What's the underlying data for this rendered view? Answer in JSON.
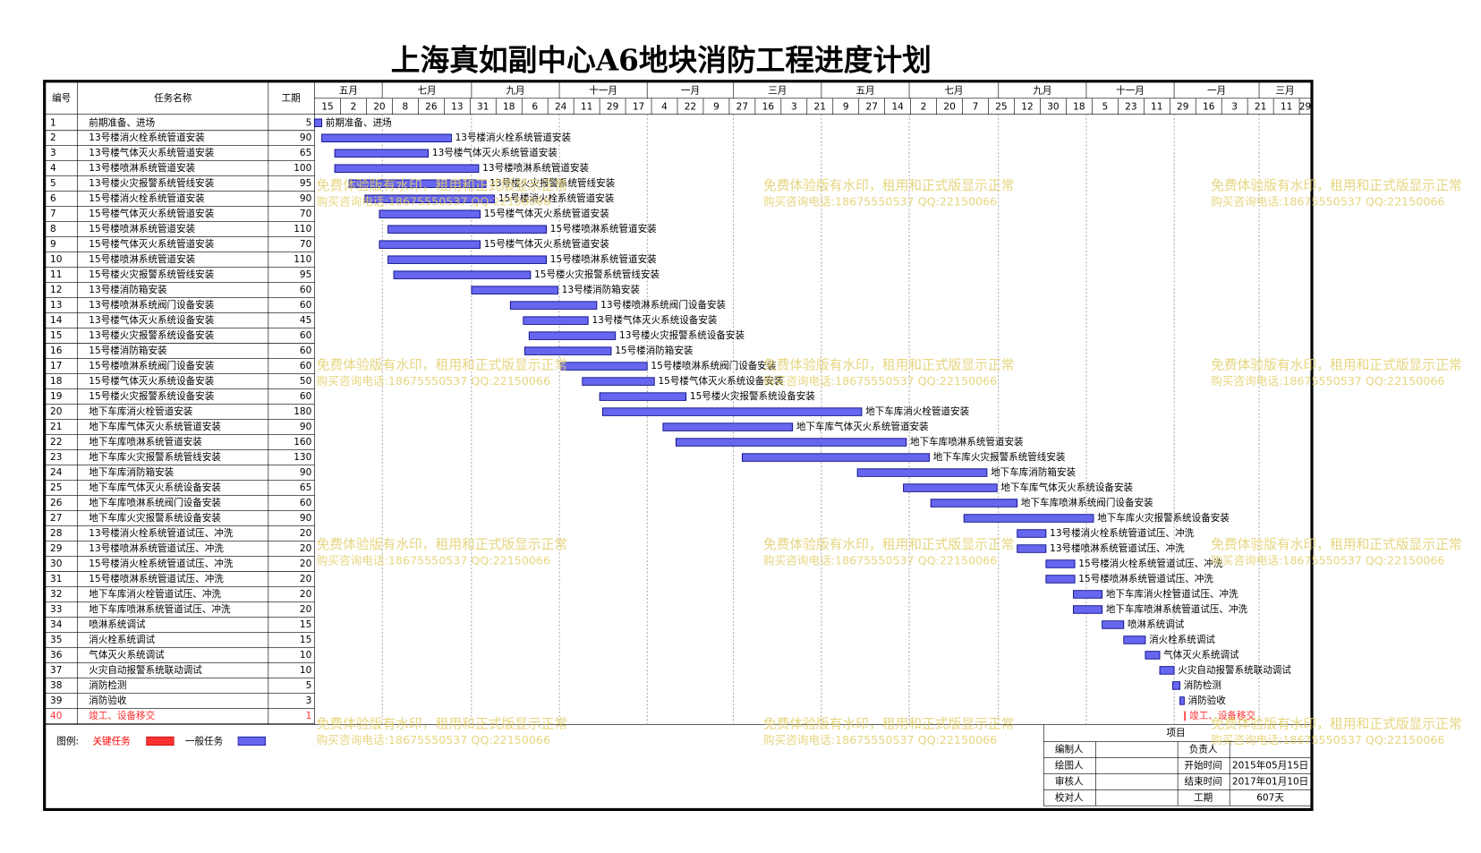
{
  "title": "上海真如副中心A6地块消防工程进度计划",
  "header": {
    "id": "编号",
    "name": "任务名称",
    "duration": "工期"
  },
  "timeline": {
    "xlim": [
      0,
      692
    ],
    "months": [
      {
        "value": 0,
        "label": "五月"
      },
      {
        "value": 47,
        "label": "七月"
      },
      {
        "value": 109,
        "label": "九月"
      },
      {
        "value": 170,
        "label": "十一月"
      },
      {
        "value": 231,
        "label": "一月"
      },
      {
        "value": 291,
        "label": "三月"
      },
      {
        "value": 352,
        "label": "五月"
      },
      {
        "value": 413,
        "label": "七月"
      },
      {
        "value": 475,
        "label": "九月"
      },
      {
        "value": 536,
        "label": "十一月"
      },
      {
        "value": 597,
        "label": "一月"
      },
      {
        "value": 656,
        "label": "三月"
      }
    ],
    "days": [
      {
        "value": 0,
        "label": "15"
      },
      {
        "value": 18,
        "label": "2"
      },
      {
        "value": 36,
        "label": "20"
      },
      {
        "value": 54,
        "label": "8"
      },
      {
        "value": 72,
        "label": "26"
      },
      {
        "value": 90,
        "label": "13"
      },
      {
        "value": 108,
        "label": "31"
      },
      {
        "value": 126,
        "label": "18"
      },
      {
        "value": 144,
        "label": "6"
      },
      {
        "value": 162,
        "label": "24"
      },
      {
        "value": 180,
        "label": "11"
      },
      {
        "value": 198,
        "label": "29"
      },
      {
        "value": 216,
        "label": "17"
      },
      {
        "value": 234,
        "label": "4"
      },
      {
        "value": 252,
        "label": "22"
      },
      {
        "value": 270,
        "label": "9"
      },
      {
        "value": 288,
        "label": "27"
      },
      {
        "value": 306,
        "label": "16"
      },
      {
        "value": 324,
        "label": "3"
      },
      {
        "value": 342,
        "label": "21"
      },
      {
        "value": 360,
        "label": "9"
      },
      {
        "value": 378,
        "label": "27"
      },
      {
        "value": 396,
        "label": "14"
      },
      {
        "value": 414,
        "label": "2"
      },
      {
        "value": 432,
        "label": "20"
      },
      {
        "value": 450,
        "label": "7"
      },
      {
        "value": 468,
        "label": "25"
      },
      {
        "value": 486,
        "label": "12"
      },
      {
        "value": 504,
        "label": "30"
      },
      {
        "value": 522,
        "label": "18"
      },
      {
        "value": 540,
        "label": "5"
      },
      {
        "value": 558,
        "label": "23"
      },
      {
        "value": 576,
        "label": "11"
      },
      {
        "value": 594,
        "label": "29"
      },
      {
        "value": 612,
        "label": "16"
      },
      {
        "value": 630,
        "label": "3"
      },
      {
        "value": 648,
        "label": "21"
      },
      {
        "value": 666,
        "label": "11"
      },
      {
        "value": 684,
        "label": "29"
      }
    ]
  },
  "colors": {
    "normal": "#6666ee",
    "critical": "#ff3030"
  },
  "tasks": [
    {
      "id": 1,
      "name": "前期准备、进场",
      "duration": 5,
      "start": 0
    },
    {
      "id": 2,
      "name": "13号楼消火栓系统管道安装",
      "duration": 90,
      "start": 5
    },
    {
      "id": 3,
      "name": "13号楼气体灭火系统管道安装",
      "duration": 65,
      "start": 14
    },
    {
      "id": 4,
      "name": "13号楼喷淋系统管道安装",
      "duration": 100,
      "start": 14
    },
    {
      "id": 5,
      "name": "13号楼火灾报警系统管线安装",
      "duration": 95,
      "start": 24
    },
    {
      "id": 6,
      "name": "15号楼消火栓系统管道安装",
      "duration": 90,
      "start": 35
    },
    {
      "id": 7,
      "name": "15号楼气体灭火系统管道安装",
      "duration": 70,
      "start": 45
    },
    {
      "id": 8,
      "name": "15号楼喷淋系统管道安装",
      "duration": 110,
      "start": 51
    },
    {
      "id": 9,
      "name": "15号楼气体灭火系统管道安装",
      "duration": 70,
      "start": 45
    },
    {
      "id": 10,
      "name": "15号楼喷淋系统管道安装",
      "duration": 110,
      "start": 51
    },
    {
      "id": 11,
      "name": "15号楼火灾报警系统管线安装",
      "duration": 95,
      "start": 55
    },
    {
      "id": 12,
      "name": "13号楼消防箱安装",
      "duration": 60,
      "start": 109
    },
    {
      "id": 13,
      "name": "13号楼喷淋系统阀门设备安装",
      "duration": 60,
      "start": 136
    },
    {
      "id": 14,
      "name": "13号楼气体灭火系统设备安装",
      "duration": 45,
      "start": 145
    },
    {
      "id": 15,
      "name": "13号楼火灾报警系统设备安装",
      "duration": 60,
      "start": 149
    },
    {
      "id": 16,
      "name": "15号楼消防箱安装",
      "duration": 60,
      "start": 146
    },
    {
      "id": 17,
      "name": "15号楼喷淋系统阀门设备安装",
      "duration": 60,
      "start": 171
    },
    {
      "id": 18,
      "name": "15号楼气体灭火系统设备安装",
      "duration": 50,
      "start": 186
    },
    {
      "id": 19,
      "name": "15号楼火灾报警系统设备安装",
      "duration": 60,
      "start": 198
    },
    {
      "id": 20,
      "name": "地下车库消火栓管道安装",
      "duration": 180,
      "start": 200
    },
    {
      "id": 21,
      "name": "地下车库气体灭火系统管道安装",
      "duration": 90,
      "start": 242
    },
    {
      "id": 22,
      "name": "地下车库喷淋系统管道安装",
      "duration": 160,
      "start": 251
    },
    {
      "id": 23,
      "name": "地下车库火灾报警系统管线安装",
      "duration": 130,
      "start": 297
    },
    {
      "id": 24,
      "name": "地下车库消防箱安装",
      "duration": 90,
      "start": 377
    },
    {
      "id": 25,
      "name": "地下车库气体灭火系统设备安装",
      "duration": 65,
      "start": 409
    },
    {
      "id": 26,
      "name": "地下车库喷淋系统阀门设备安装",
      "duration": 60,
      "start": 428
    },
    {
      "id": 27,
      "name": "地下车库火灾报警系统设备安装",
      "duration": 90,
      "start": 451
    },
    {
      "id": 28,
      "name": "13号楼消火栓系统管道试压、冲洗",
      "duration": 20,
      "start": 488
    },
    {
      "id": 29,
      "name": "13号楼喷淋系统管道试压、冲洗",
      "duration": 20,
      "start": 488
    },
    {
      "id": 30,
      "name": "15号楼消火栓系统管道试压、冲洗",
      "duration": 20,
      "start": 508
    },
    {
      "id": 31,
      "name": "15号楼喷淋系统管道试压、冲洗",
      "duration": 20,
      "start": 508
    },
    {
      "id": 32,
      "name": "地下车库消火栓管道试压、冲洗",
      "duration": 20,
      "start": 527
    },
    {
      "id": 33,
      "name": "地下车库喷淋系统管道试压、冲洗",
      "duration": 20,
      "start": 527
    },
    {
      "id": 34,
      "name": "喷淋系统调试",
      "duration": 15,
      "start": 547
    },
    {
      "id": 35,
      "name": "消火栓系统调试",
      "duration": 15,
      "start": 562
    },
    {
      "id": 36,
      "name": "气体灭火系统调试",
      "duration": 10,
      "start": 577
    },
    {
      "id": 37,
      "name": "火灾自动报警系统联动调试",
      "duration": 10,
      "start": 587
    },
    {
      "id": 38,
      "name": "消防检测",
      "duration": 5,
      "start": 596
    },
    {
      "id": 39,
      "name": "消防验收",
      "duration": 3,
      "start": 601
    },
    {
      "id": 40,
      "name": "竣工、设备移交",
      "duration": 1,
      "start": 604,
      "critical": true
    }
  ],
  "legend": {
    "label": "图例:",
    "critical": "关键任务",
    "normal": "一般任务"
  },
  "info": {
    "header": "项目",
    "rows": [
      {
        "label": "编制人",
        "key": "负责人"
      },
      {
        "label": "绘图人",
        "key": "开始时间",
        "value": "2015年05月15日"
      },
      {
        "label": "审核人",
        "key": "结束时间",
        "value": "2017年01月10日"
      },
      {
        "label": "校对人",
        "key": "工期",
        "value": "607天"
      }
    ]
  },
  "watermark": {
    "line1": "免费体验版有水印，租用和正式版显示正常",
    "line2": "购买咨询电话:18675550537 QQ:22150066"
  }
}
